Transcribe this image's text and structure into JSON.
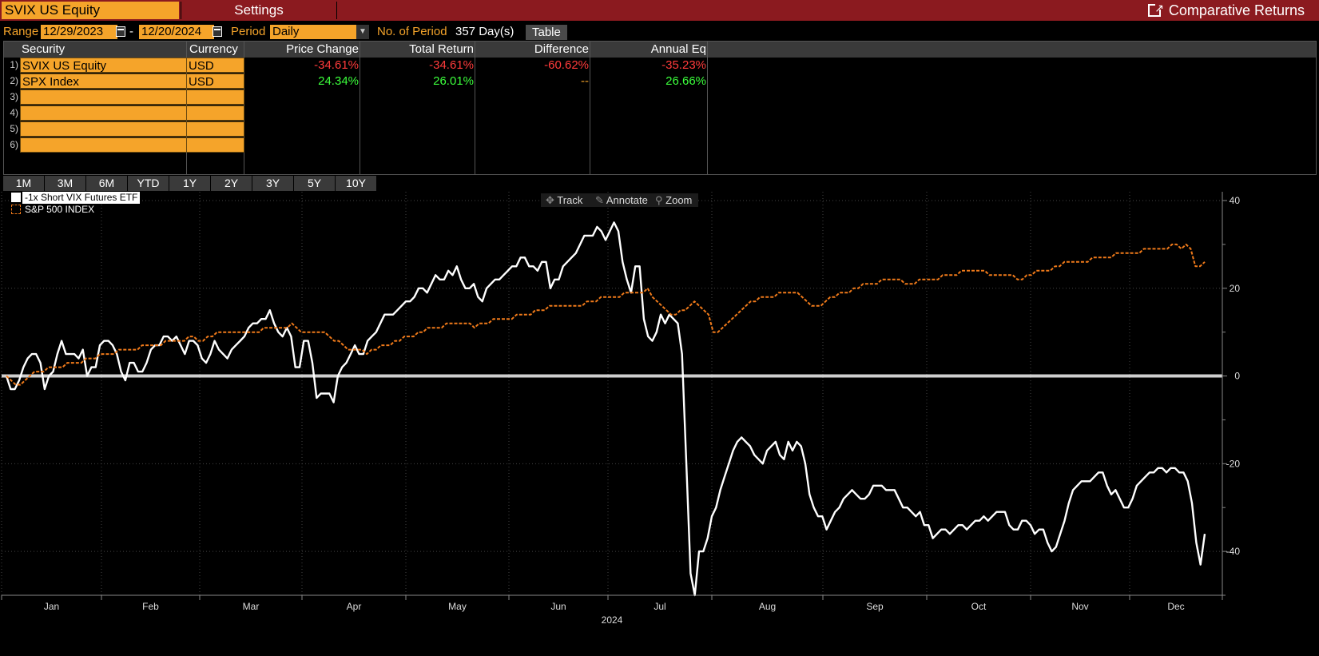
{
  "header": {
    "ticker": "SVIX US Equity",
    "settings_label": "Settings",
    "function_title": "Comparative Returns"
  },
  "params": {
    "range_label": "Range",
    "start_date": "12/29/2023",
    "range_sep": "-",
    "end_date": "12/20/2024",
    "period_label": "Period",
    "period_value": "Daily",
    "num_periods_label": "No. of Period",
    "num_periods_value": "357 Day(s)",
    "table_button": "Table"
  },
  "table": {
    "headers": [
      "Security",
      "Currency",
      "Price Change",
      "Total Return",
      "Difference",
      "Annual Eq"
    ],
    "rows": [
      {
        "num": "1)",
        "security": "SVIX US Equity",
        "currency": "USD",
        "price_change": "-34.61%",
        "total_return": "-34.61%",
        "difference": "-60.62%",
        "annual_eq": "-35.23%"
      },
      {
        "num": "2)",
        "security": "SPX Index",
        "currency": "USD",
        "price_change": "24.34%",
        "total_return": "26.01%",
        "difference": "--",
        "annual_eq": "26.66%"
      },
      {
        "num": "3)",
        "security": "",
        "currency": "",
        "price_change": "",
        "total_return": "",
        "difference": "",
        "annual_eq": ""
      },
      {
        "num": "4)",
        "security": "",
        "currency": "",
        "price_change": "",
        "total_return": "",
        "difference": "",
        "annual_eq": ""
      },
      {
        "num": "5)",
        "security": "",
        "currency": "",
        "price_change": "",
        "total_return": "",
        "difference": "",
        "annual_eq": ""
      },
      {
        "num": "6)",
        "security": "",
        "currency": "",
        "price_change": "",
        "total_return": "",
        "difference": "",
        "annual_eq": ""
      }
    ]
  },
  "period_buttons": [
    "1M",
    "3M",
    "6M",
    "YTD",
    "1Y",
    "2Y",
    "3Y",
    "5Y",
    "10Y"
  ],
  "chart_tools": {
    "track": "Track",
    "annotate": "Annotate",
    "zoom": "Zoom"
  },
  "colors": {
    "header_red": "#8b1a1f",
    "amber": "#f5a42a",
    "negative": "#ff3b3b",
    "positive": "#3cff3c",
    "series1": "#ffffff",
    "series2": "#f07a1a"
  },
  "chart_data": {
    "type": "line",
    "year_label": "2024",
    "x_labels": [
      "Jan",
      "Feb",
      "Mar",
      "Apr",
      "May",
      "Jun",
      "Jul",
      "Aug",
      "Sep",
      "Oct",
      "Nov",
      "Dec"
    ],
    "y_ticks": [
      40,
      20,
      0,
      -20,
      -40
    ],
    "ylim": [
      -50,
      42
    ],
    "legend_position": "top-left",
    "grid": true,
    "series": [
      {
        "name": "-1x Short VIX Futures ETF",
        "style": "solid",
        "color": "#ffffff",
        "values": [
          0,
          -3,
          -3,
          -1,
          2,
          4,
          5,
          5,
          3,
          -3,
          0,
          1,
          5,
          8,
          5,
          5,
          5,
          4,
          6,
          0,
          2,
          2,
          7,
          8,
          8,
          7,
          5,
          1,
          -1,
          3,
          3,
          1,
          1,
          3,
          6,
          7,
          7,
          9,
          9,
          8,
          9,
          7,
          5,
          8,
          8,
          7,
          4,
          3,
          5,
          8,
          6,
          5,
          4,
          6,
          7,
          8,
          9,
          11,
          12,
          12,
          13,
          13,
          15,
          12,
          10,
          9,
          11,
          9,
          2,
          2,
          8,
          8,
          3,
          -5,
          -4,
          -4,
          -4,
          -6,
          0,
          2,
          3,
          5,
          7,
          5,
          5,
          8,
          9,
          10,
          12,
          14,
          14,
          14,
          15,
          16,
          17,
          17,
          18,
          20,
          20,
          19,
          21,
          23,
          22,
          22,
          24,
          23,
          25,
          22,
          20,
          20,
          21,
          18,
          17,
          20,
          21,
          22,
          22,
          23,
          24,
          25,
          25,
          27,
          27,
          25,
          25,
          24,
          26,
          26,
          20,
          22,
          22,
          25,
          26,
          27,
          28,
          30,
          32,
          32,
          32,
          34,
          33,
          31,
          33,
          35,
          33,
          26,
          22,
          19,
          25,
          25,
          13,
          9,
          8,
          10,
          14,
          12,
          14,
          13,
          12,
          5,
          -20,
          -45,
          -50,
          -40,
          -40,
          -37,
          -32,
          -30,
          -26,
          -23,
          -20,
          -17,
          -15,
          -14,
          -15,
          -16,
          -18,
          -19,
          -20,
          -17,
          -16,
          -15,
          -18,
          -19,
          -15,
          -17,
          -15,
          -16,
          -20,
          -27,
          -30,
          -32,
          -32,
          -35,
          -33,
          -31,
          -30,
          -28,
          -27,
          -26,
          -27,
          -28,
          -28,
          -27,
          -25,
          -25,
          -25,
          -26,
          -26,
          -26,
          -28,
          -30,
          -30,
          -31,
          -32,
          -31,
          -34,
          -34,
          -37,
          -36,
          -35,
          -35,
          -36,
          -35,
          -34,
          -34,
          -35,
          -34,
          -33,
          -33,
          -32,
          -33,
          -32,
          -31,
          -31,
          -31,
          -34,
          -35,
          -35,
          -33,
          -33,
          -34,
          -36,
          -35,
          -35,
          -38,
          -40,
          -39,
          -36,
          -33,
          -29,
          -26,
          -25,
          -24,
          -24,
          -24,
          -23,
          -22,
          -22,
          -25,
          -27,
          -26,
          -28,
          -30,
          -30,
          -28,
          -25,
          -24,
          -23,
          -22,
          -22,
          -21,
          -21,
          -22,
          -21,
          -21,
          -22,
          -22,
          -24,
          -29,
          -38,
          -43,
          -36
        ]
      },
      {
        "name": "S&P 500 INDEX",
        "style": "dashed",
        "color": "#f07a1a",
        "values": [
          0,
          -1,
          -2,
          -2,
          -1,
          0,
          1,
          1,
          1,
          2,
          2,
          2,
          2,
          3,
          3,
          3,
          3,
          4,
          4,
          4,
          5,
          5,
          5,
          5,
          6,
          6,
          6,
          6,
          6,
          7,
          7,
          7,
          7,
          7,
          8,
          8,
          8,
          8,
          8,
          9,
          9,
          8,
          8,
          9,
          9,
          10,
          10,
          10,
          10,
          10,
          10,
          10,
          10,
          10,
          10,
          11,
          11,
          11,
          11,
          11,
          11,
          12,
          11,
          10,
          10,
          10,
          10,
          10,
          10,
          9,
          8,
          8,
          7,
          6,
          6,
          6,
          6,
          5,
          6,
          6,
          7,
          7,
          7,
          8,
          8,
          9,
          9,
          9,
          10,
          10,
          11,
          11,
          11,
          11,
          12,
          12,
          12,
          12,
          12,
          12,
          11,
          12,
          12,
          12,
          13,
          13,
          13,
          13,
          13,
          14,
          14,
          14,
          14,
          15,
          15,
          15,
          16,
          16,
          16,
          16,
          16,
          16,
          16,
          16,
          17,
          17,
          17,
          18,
          18,
          18,
          18,
          18,
          19,
          19,
          19,
          19,
          19,
          20,
          18,
          17,
          16,
          15,
          14,
          14,
          15,
          15,
          16,
          17,
          16,
          15,
          14,
          10,
          10,
          11,
          12,
          13,
          14,
          15,
          16,
          17,
          17,
          18,
          18,
          18,
          18,
          19,
          19,
          19,
          19,
          19,
          18,
          17,
          16,
          16,
          16,
          17,
          18,
          18,
          19,
          19,
          19,
          20,
          20,
          21,
          21,
          21,
          21,
          22,
          22,
          22,
          22,
          22,
          21,
          21,
          21,
          22,
          22,
          22,
          22,
          22,
          23,
          23,
          23,
          23,
          24,
          24,
          24,
          24,
          24,
          24,
          23,
          23,
          23,
          23,
          23,
          23,
          22,
          22,
          23,
          23,
          24,
          24,
          24,
          24,
          25,
          25,
          26,
          26,
          26,
          26,
          26,
          26,
          27,
          27,
          27,
          27,
          27,
          28,
          28,
          28,
          28,
          28,
          28,
          29,
          29,
          29,
          29,
          29,
          29,
          30,
          30,
          29,
          30,
          29,
          25,
          25,
          26
        ]
      }
    ]
  }
}
